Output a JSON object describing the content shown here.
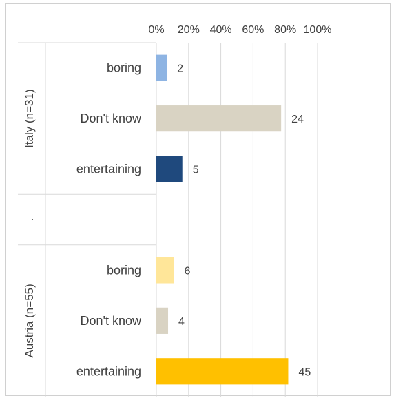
{
  "chart_data": {
    "type": "bar",
    "orientation": "horizontal",
    "x_ticks": [
      "0%",
      "20%",
      "40%",
      "60%",
      "80%",
      "100%"
    ],
    "xlim": [
      0,
      100
    ],
    "grid": true,
    "groups": [
      {
        "label": "Italy (n=31)",
        "n": 31,
        "bars": [
          {
            "category": "boring",
            "count": 2,
            "color": "#8EB4E3"
          },
          {
            "category": "Don't know",
            "count": 24,
            "color": "#D9D3C3"
          },
          {
            "category": "entertaining",
            "count": 5,
            "color": "#1F497D"
          }
        ]
      },
      {
        "label": ".",
        "bars": []
      },
      {
        "label": "Austria (n=55)",
        "n": 55,
        "bars": [
          {
            "category": "boring",
            "count": 6,
            "color": "#FFE699"
          },
          {
            "category": "Don't know",
            "count": 4,
            "color": "#D9D3C3"
          },
          {
            "category": "entertaining",
            "count": 45,
            "color": "#FFC000"
          }
        ]
      }
    ]
  }
}
